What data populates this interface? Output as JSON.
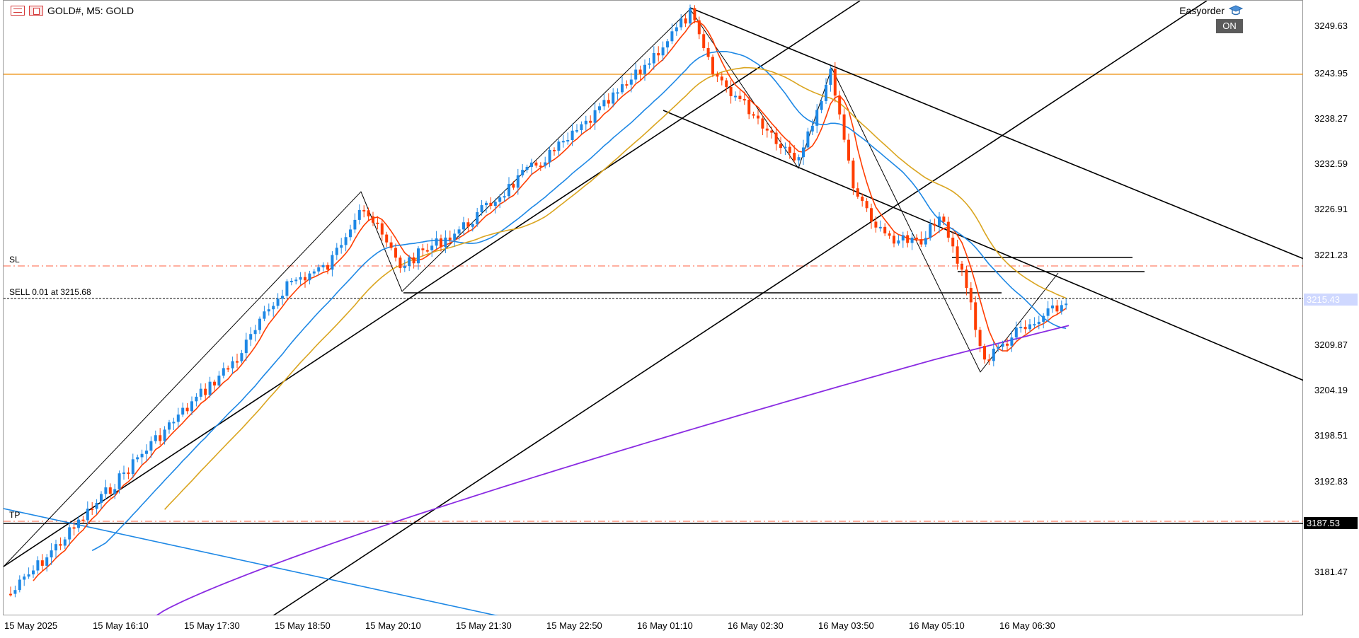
{
  "header": {
    "symbol_title": "GOLD#, M5:  GOLD"
  },
  "easyorder": {
    "label": "Easyorder",
    "state": "ON"
  },
  "trade": {
    "order_label": "SELL 0.01 at 3215.68",
    "sl_label": "SL",
    "tp_label": "TP",
    "current_price": "3215.43",
    "tp_price": "3187.53"
  },
  "price_axis": {
    "labels": [
      "3249.63",
      "3243.95",
      "3238.27",
      "3232.59",
      "3226.91",
      "3221.23",
      "3209.87",
      "3204.19",
      "3198.51",
      "3192.83",
      "3181.47"
    ]
  },
  "time_axis": {
    "labels": [
      "15 May 2025",
      "15 May 16:10",
      "15 May 17:30",
      "15 May 18:50",
      "15 May 20:10",
      "15 May 21:30",
      "15 May 22:50",
      "16 May 01:10",
      "16 May 02:30",
      "16 May 03:50",
      "16 May 05:10",
      "16 May 06:30"
    ]
  },
  "colors": {
    "bull": "#1e88e5",
    "bear": "#ff3d00",
    "ma_fast": "#ff3d00",
    "ma_mid": "#1e88e5",
    "ma_slow": "#daa520",
    "ma_long": "#8a2be2",
    "hline": "#f0a030",
    "sl_tp": "#ff6040"
  },
  "icons": [
    "menu-icon",
    "symbol-icon",
    "graduation-cap-icon"
  ]
}
